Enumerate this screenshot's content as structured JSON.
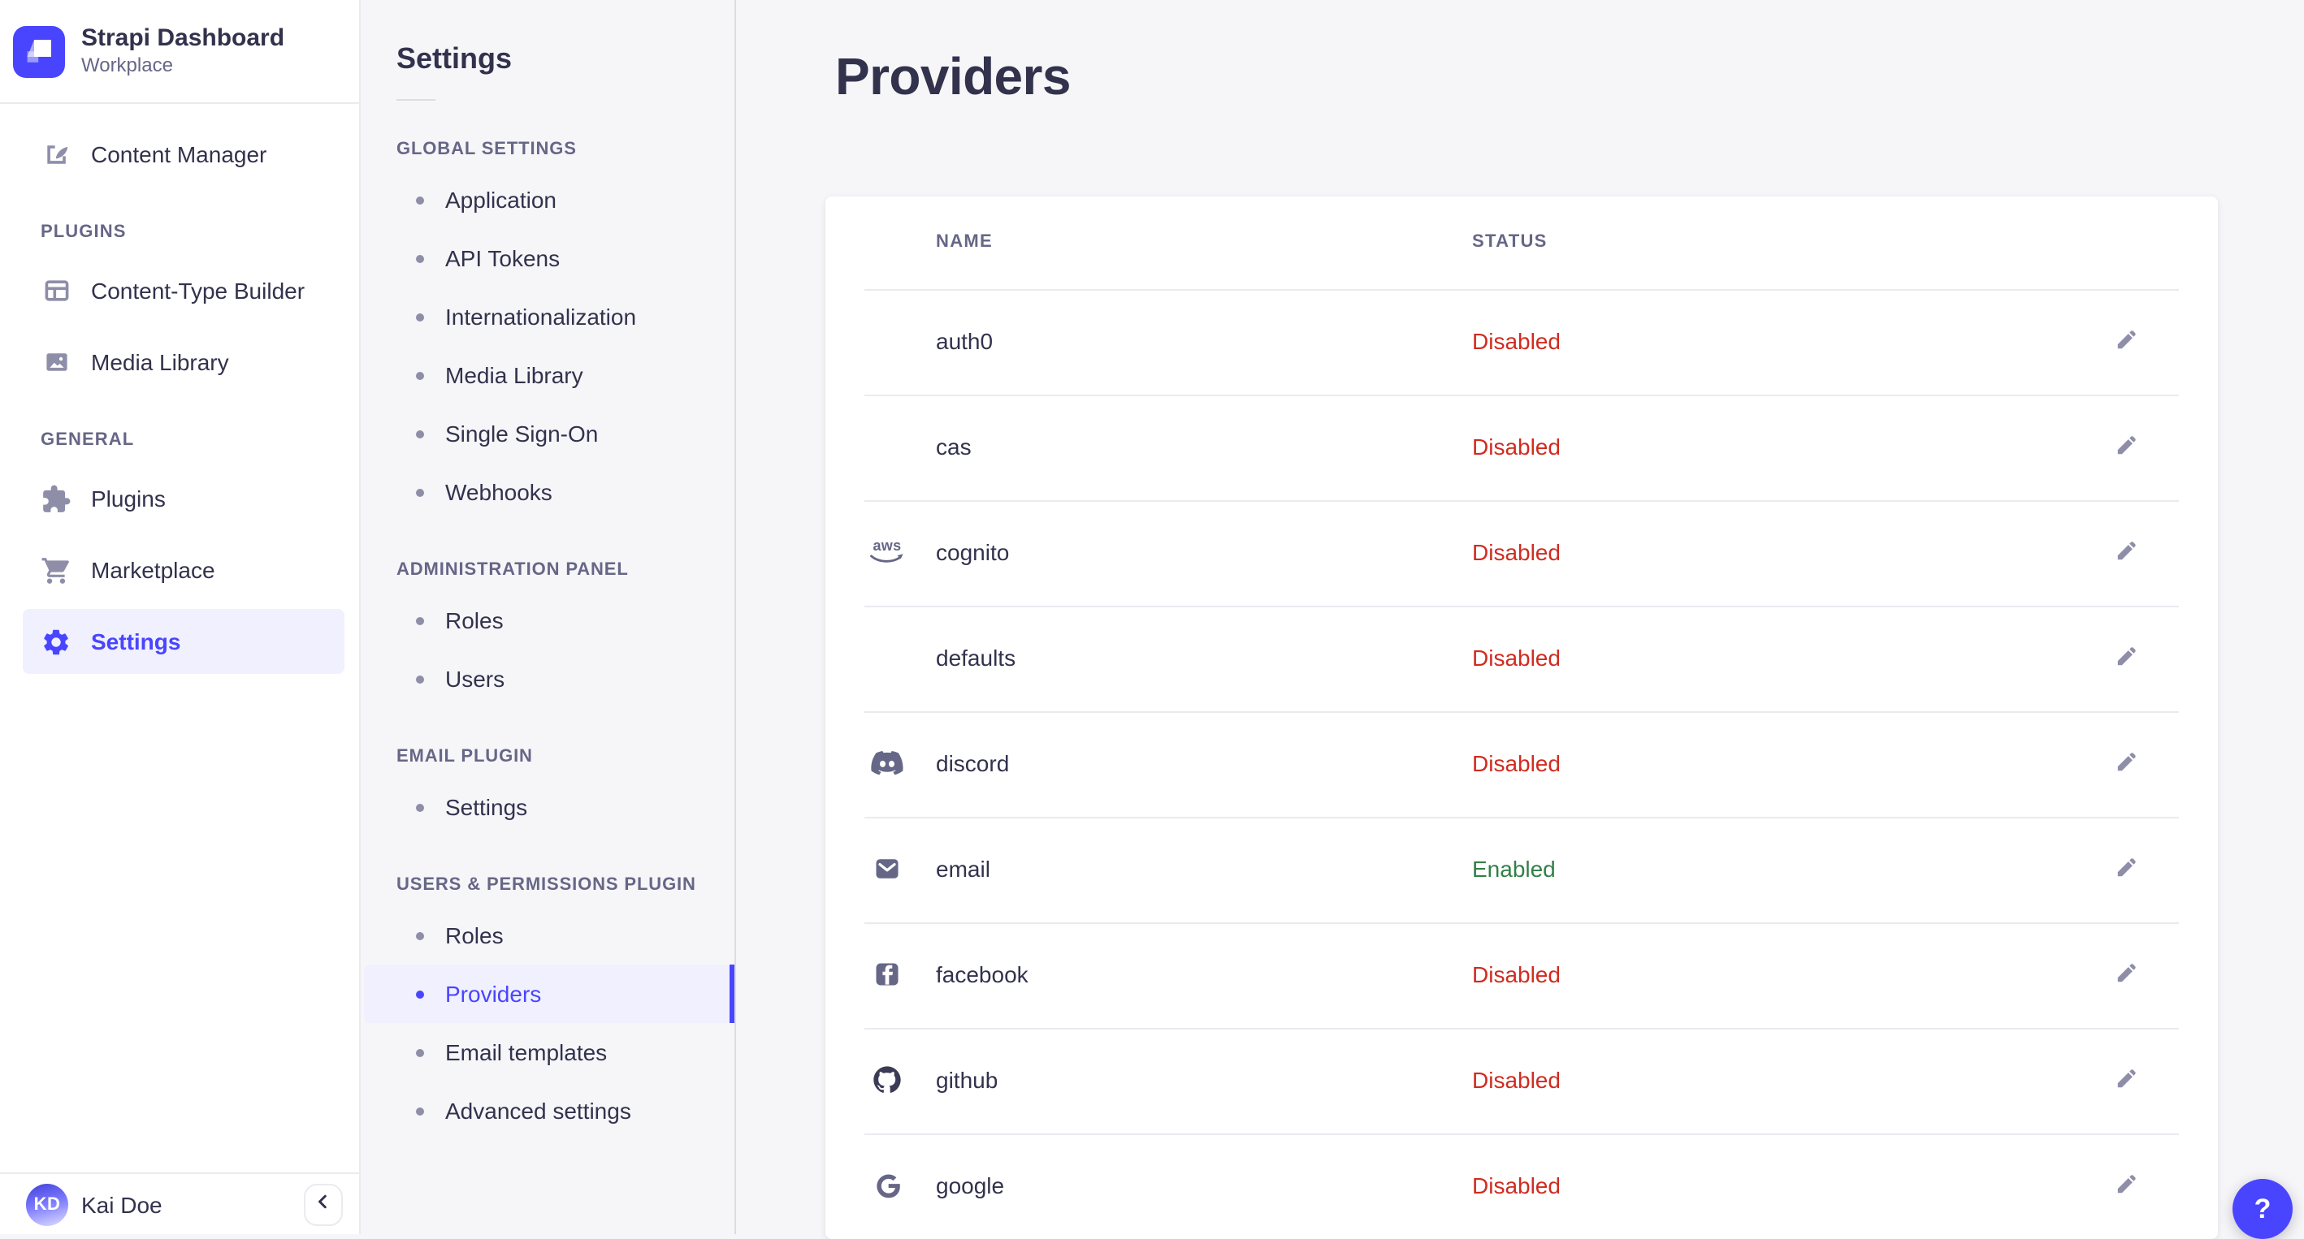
{
  "colors": {
    "accent": "#4945ff",
    "status_disabled": "#d02b20",
    "status_enabled": "#328048"
  },
  "brand": {
    "title": "Strapi Dashboard",
    "subtitle": "Workplace"
  },
  "nav": {
    "top_items": [
      {
        "label": "Content Manager",
        "icon": "content-manager-icon",
        "active": false
      }
    ],
    "sections": [
      {
        "label": "PLUGINS",
        "items": [
          {
            "label": "Content-Type Builder",
            "icon": "content-type-builder-icon",
            "active": false
          },
          {
            "label": "Media Library",
            "icon": "media-library-icon",
            "active": false
          }
        ]
      },
      {
        "label": "GENERAL",
        "items": [
          {
            "label": "Plugins",
            "icon": "plugins-icon",
            "active": false
          },
          {
            "label": "Marketplace",
            "icon": "marketplace-icon",
            "active": false
          },
          {
            "label": "Settings",
            "icon": "settings-icon",
            "active": true
          }
        ]
      }
    ],
    "user": {
      "initials": "KD",
      "name": "Kai Doe"
    }
  },
  "subnav": {
    "title": "Settings",
    "sections": [
      {
        "label": "GLOBAL SETTINGS",
        "items": [
          {
            "label": "Application",
            "active": false
          },
          {
            "label": "API Tokens",
            "active": false
          },
          {
            "label": "Internationalization",
            "active": false
          },
          {
            "label": "Media Library",
            "active": false
          },
          {
            "label": "Single Sign-On",
            "active": false
          },
          {
            "label": "Webhooks",
            "active": false
          }
        ]
      },
      {
        "label": "ADMINISTRATION PANEL",
        "items": [
          {
            "label": "Roles",
            "active": false
          },
          {
            "label": "Users",
            "active": false
          }
        ]
      },
      {
        "label": "EMAIL PLUGIN",
        "items": [
          {
            "label": "Settings",
            "active": false
          }
        ]
      },
      {
        "label": "USERS & PERMISSIONS PLUGIN",
        "items": [
          {
            "label": "Roles",
            "active": false
          },
          {
            "label": "Providers",
            "active": true
          },
          {
            "label": "Email templates",
            "active": false
          },
          {
            "label": "Advanced settings",
            "active": false
          }
        ]
      }
    ]
  },
  "main": {
    "title": "Providers",
    "table": {
      "columns": [
        "NAME",
        "STATUS"
      ],
      "rows": [
        {
          "name": "auth0",
          "icon": null,
          "status": "Disabled"
        },
        {
          "name": "cas",
          "icon": null,
          "status": "Disabled"
        },
        {
          "name": "cognito",
          "icon": "aws-icon",
          "status": "Disabled"
        },
        {
          "name": "defaults",
          "icon": null,
          "status": "Disabled"
        },
        {
          "name": "discord",
          "icon": "discord-icon",
          "status": "Disabled"
        },
        {
          "name": "email",
          "icon": "email-icon",
          "status": "Enabled"
        },
        {
          "name": "facebook",
          "icon": "facebook-icon",
          "status": "Disabled"
        },
        {
          "name": "github",
          "icon": "github-icon",
          "status": "Disabled"
        },
        {
          "name": "google",
          "icon": "google-icon",
          "status": "Disabled"
        }
      ]
    }
  },
  "help": {
    "label": "?"
  }
}
